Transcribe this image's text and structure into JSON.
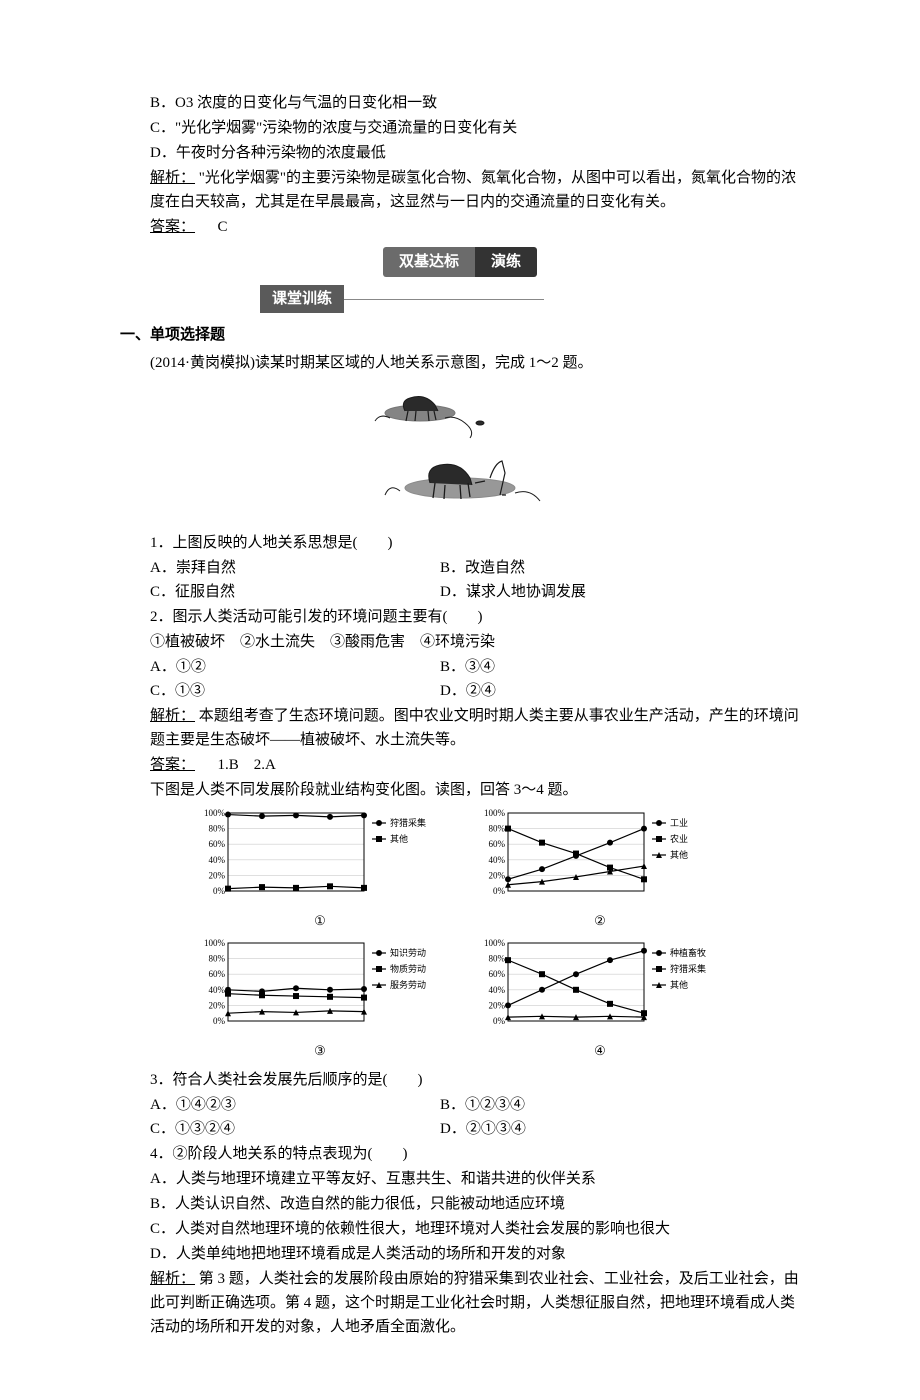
{
  "top_options": {
    "b": "B．O3 浓度的日变化与气温的日变化相一致",
    "c": "C．\"光化学烟雾\"污染物的浓度与交通流量的日变化有关",
    "d": "D．午夜时分各种污染物的浓度最低"
  },
  "top_analysis": {
    "label": "解析：",
    "text": "\"光化学烟雾\"的主要污染物是碳氢化合物、氮氧化合物，从图中可以看出，氮氧化合物的浓度在白天较高，尤其是在早晨最高，这显然与一日内的交通流量的日变化有关。"
  },
  "top_answer": {
    "label": "答案：",
    "value": "C"
  },
  "banner1": {
    "left": "双基达标",
    "right": "演练"
  },
  "banner2": "课堂训练",
  "section1_title": "一、单项选择题",
  "q12_intro": "(2014·黄岗模拟)读某时期某区域的人地关系示意图，完成 1～2 题。",
  "q1": {
    "stem": "1．上图反映的人地关系思想是(　　)",
    "a": "A．崇拜自然",
    "b": "B．改造自然",
    "c": "C．征服自然",
    "d": "D．谋求人地协调发展"
  },
  "q2": {
    "stem": "2．图示人类活动可能引发的环境问题主要有(　　)",
    "sub": "①植被破坏　②水土流失　③酸雨危害　④环境污染",
    "a": "A．①②",
    "b": "B．③④",
    "c": "C．①③",
    "d": "D．②④"
  },
  "q12_analysis": {
    "label": "解析：",
    "text": "本题组考查了生态环境问题。图中农业文明时期人类主要从事农业生产活动，产生的环境问题主要是生态破坏——植被破坏、水土流失等。"
  },
  "q12_answer": {
    "label": "答案：",
    "value": "1.B　2.A"
  },
  "q34_intro": "下图是人类不同发展阶段就业结构变化图。读图，回答 3～4 题。",
  "charts": {
    "ytick_labels": [
      "0%",
      "20%",
      "40%",
      "60%",
      "80%",
      "100%"
    ],
    "ylim": [
      0,
      100
    ],
    "grid_color": "#cccccc",
    "axis_color": "#000000",
    "bg": "#ffffff",
    "font_size": 9,
    "panels": [
      {
        "id": "①",
        "legend": [
          "狩猎采集",
          "其他"
        ],
        "markers": [
          "circle",
          "square"
        ],
        "series": [
          [
            98,
            96,
            97,
            95,
            97
          ],
          [
            3,
            5,
            4,
            6,
            4
          ]
        ]
      },
      {
        "id": "②",
        "legend": [
          "工业",
          "农业",
          "其他"
        ],
        "markers": [
          "circle",
          "square",
          "triangle"
        ],
        "series": [
          [
            15,
            28,
            45,
            62,
            80
          ],
          [
            80,
            62,
            48,
            30,
            15
          ],
          [
            8,
            12,
            18,
            25,
            32
          ]
        ]
      },
      {
        "id": "③",
        "legend": [
          "知识劳动",
          "物质劳动",
          "服务劳动"
        ],
        "markers": [
          "circle",
          "square",
          "triangle"
        ],
        "series": [
          [
            40,
            38,
            42,
            40,
            41
          ],
          [
            35,
            33,
            32,
            31,
            30
          ],
          [
            10,
            12,
            11,
            13,
            12
          ]
        ]
      },
      {
        "id": "④",
        "legend": [
          "种植畜牧",
          "狩猎采集",
          "其他"
        ],
        "markers": [
          "circle",
          "square",
          "triangle"
        ],
        "series": [
          [
            20,
            40,
            60,
            78,
            90
          ],
          [
            78,
            60,
            40,
            22,
            10
          ],
          [
            5,
            6,
            5,
            6,
            5
          ]
        ]
      }
    ]
  },
  "q3": {
    "stem": "3．符合人类社会发展先后顺序的是(　　)",
    "a": "A．①④②③",
    "b": "B．①②③④",
    "c": "C．①③②④",
    "d": "D．②①③④"
  },
  "q4": {
    "stem": "4．②阶段人地关系的特点表现为(　　)",
    "a": "A．人类与地理环境建立平等友好、互惠共生、和谐共进的伙伴关系",
    "b": "B．人类认识自然、改造自然的能力很低，只能被动地适应环境",
    "c": "C．人类对自然地理环境的依赖性很大，地理环境对人类社会发展的影响也很大",
    "d": "D．人类单纯地把地理环境看成是人类活动的场所和开发的对象"
  },
  "q34_analysis": {
    "label": "解析：",
    "text": "第 3 题，人类社会的发展阶段由原始的狩猎采集到农业社会、工业社会，及后工业社会，由此可判断正确选项。第 4 题，这个时期是工业化社会时期，人类想征服自然，把地理环境看成人类活动的场所和开发的对象，人地矛盾全面激化。"
  }
}
